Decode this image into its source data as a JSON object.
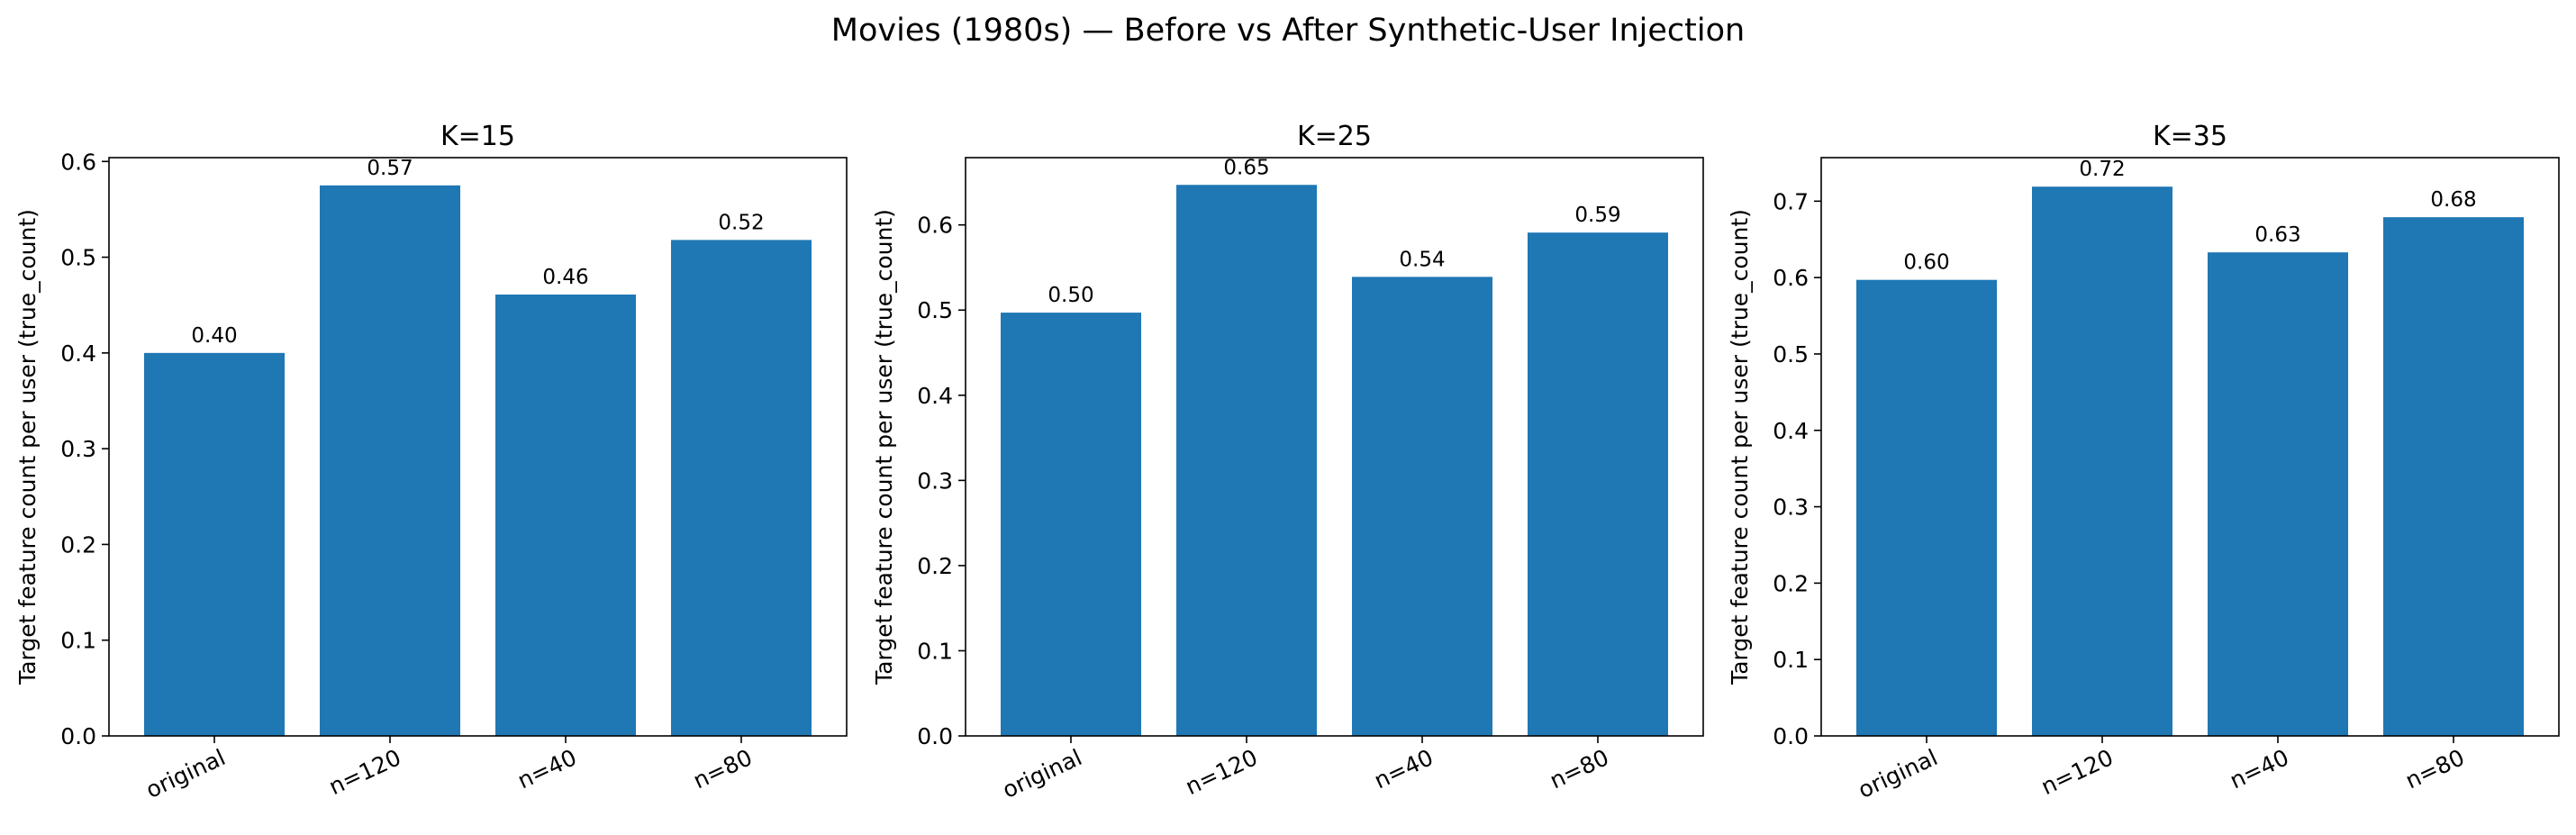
{
  "title": "Movies (1980s) — Before vs After Synthetic-User Injection",
  "colors": {
    "bar": "#1f77b4",
    "axis": "#000000",
    "background": "#ffffff"
  },
  "chart_data": [
    {
      "type": "bar",
      "title": "K=15",
      "xlabel": "",
      "ylabel": "Target feature count per user (true_count)",
      "categories": [
        "original",
        "n=120",
        "n=40",
        "n=80"
      ],
      "values": [
        0.4,
        0.575,
        0.461,
        0.518
      ],
      "value_labels": [
        "0.40",
        "0.57",
        "0.46",
        "0.52"
      ],
      "yticks": [
        0.0,
        0.1,
        0.2,
        0.3,
        0.4,
        0.5,
        0.6
      ],
      "ytick_labels": [
        "0.0",
        "0.1",
        "0.2",
        "0.3",
        "0.4",
        "0.5",
        "0.6"
      ],
      "ylim": [
        0,
        0.604
      ],
      "grid": false,
      "legend": "none"
    },
    {
      "type": "bar",
      "title": "K=25",
      "xlabel": "",
      "ylabel": "Target feature count per user (true_count)",
      "categories": [
        "original",
        "n=120",
        "n=40",
        "n=80"
      ],
      "values": [
        0.497,
        0.647,
        0.539,
        0.591
      ],
      "value_labels": [
        "0.50",
        "0.65",
        "0.54",
        "0.59"
      ],
      "yticks": [
        0.0,
        0.1,
        0.2,
        0.3,
        0.4,
        0.5,
        0.6
      ],
      "ytick_labels": [
        "0.0",
        "0.1",
        "0.2",
        "0.3",
        "0.4",
        "0.5",
        "0.6"
      ],
      "ylim": [
        0,
        0.679
      ],
      "grid": false,
      "legend": "none"
    },
    {
      "type": "bar",
      "title": "K=35",
      "xlabel": "",
      "ylabel": "Target feature count per user (true_count)",
      "categories": [
        "original",
        "n=120",
        "n=40",
        "n=80"
      ],
      "values": [
        0.597,
        0.719,
        0.633,
        0.679
      ],
      "value_labels": [
        "0.60",
        "0.72",
        "0.63",
        "0.68"
      ],
      "yticks": [
        0.0,
        0.1,
        0.2,
        0.3,
        0.4,
        0.5,
        0.6,
        0.7
      ],
      "ytick_labels": [
        "0.0",
        "0.1",
        "0.2",
        "0.3",
        "0.4",
        "0.5",
        "0.6",
        "0.7"
      ],
      "ylim": [
        0,
        0.757
      ],
      "grid": false,
      "legend": "none"
    }
  ]
}
